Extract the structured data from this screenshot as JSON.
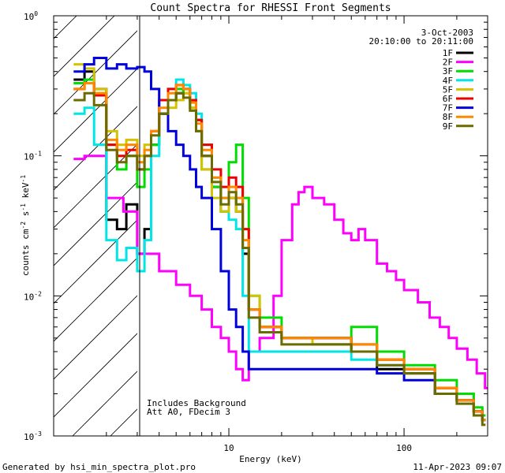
{
  "chart_data": {
    "type": "line",
    "title": "Count Spectra for RHESSI Front Segments",
    "xlabel": "Energy (keV)",
    "ylabel": "counts cm-2 s-1 keV-1",
    "ylabel_parts": {
      "base": "counts cm",
      "e1": "-2",
      "s": " s",
      "e2": "-1",
      "k": " keV",
      "e3": "-1"
    },
    "xscale": "log",
    "yscale": "log",
    "xlim": [
      1,
      300
    ],
    "ylim": [
      0.001,
      1
    ],
    "x_ticks": [
      {
        "value": 10,
        "label": "10"
      },
      {
        "value": 100,
        "label": "100"
      }
    ],
    "y_ticks": [
      {
        "value": 0.001,
        "base": "10",
        "exp": "-3"
      },
      {
        "value": 0.01,
        "base": "10",
        "exp": "-2"
      },
      {
        "value": 0.1,
        "base": "10",
        "exp": "-1"
      },
      {
        "value": 1,
        "base": "10",
        "exp": "0"
      }
    ],
    "shaded_region": {
      "x_range": [
        1,
        3
      ],
      "description": "hatched, below 3 keV"
    },
    "date_label": "3-Oct-2003",
    "time_label": "20:10:00 to 20:11:00",
    "annotation_lines": [
      "Includes Background",
      "Att A0, FDecim 3"
    ],
    "footer_left": "Generated by hsi_min_spectra_plot.pro",
    "footer_right": "11-Apr-2023 09:07",
    "series": [
      {
        "name": "1F",
        "color": "#000000",
        "points": [
          [
            1.3,
            0.35
          ],
          [
            1.5,
            0.4
          ],
          [
            1.7,
            0.3
          ],
          [
            2.0,
            0.035
          ],
          [
            2.3,
            0.03
          ],
          [
            2.6,
            0.045
          ],
          [
            3.0,
            0.02
          ],
          [
            3.3,
            0.03
          ],
          [
            3.6,
            0.12
          ],
          [
            4.0,
            0.2
          ],
          [
            4.5,
            0.25
          ],
          [
            5.0,
            0.28
          ],
          [
            5.5,
            0.3
          ],
          [
            6.0,
            0.25
          ],
          [
            6.5,
            0.18
          ],
          [
            7.0,
            0.1
          ],
          [
            8.0,
            0.06
          ],
          [
            9.0,
            0.04
          ],
          [
            10,
            0.05
          ],
          [
            11,
            0.04
          ],
          [
            12,
            0.02
          ],
          [
            13,
            0.008
          ],
          [
            15,
            0.006
          ],
          [
            20,
            0.005
          ],
          [
            30,
            0.005
          ],
          [
            50,
            0.004
          ],
          [
            70,
            0.003
          ],
          [
            100,
            0.0028
          ],
          [
            150,
            0.002
          ],
          [
            200,
            0.0018
          ],
          [
            250,
            0.0015
          ],
          [
            280,
            0.0013
          ]
        ]
      },
      {
        "name": "2F",
        "color": "#ff00ff",
        "points": [
          [
            1.3,
            0.095
          ],
          [
            1.5,
            0.1
          ],
          [
            2.0,
            0.05
          ],
          [
            2.5,
            0.04
          ],
          [
            3.0,
            0.02
          ],
          [
            4.0,
            0.015
          ],
          [
            5.0,
            0.012
          ],
          [
            6.0,
            0.01
          ],
          [
            7.0,
            0.008
          ],
          [
            8.0,
            0.006
          ],
          [
            9.0,
            0.005
          ],
          [
            10,
            0.004
          ],
          [
            11,
            0.003
          ],
          [
            12,
            0.0025
          ],
          [
            13,
            0.004
          ],
          [
            15,
            0.005
          ],
          [
            18,
            0.01
          ],
          [
            20,
            0.025
          ],
          [
            23,
            0.045
          ],
          [
            25,
            0.055
          ],
          [
            27,
            0.06
          ],
          [
            30,
            0.05
          ],
          [
            35,
            0.045
          ],
          [
            40,
            0.035
          ],
          [
            45,
            0.028
          ],
          [
            50,
            0.025
          ],
          [
            55,
            0.03
          ],
          [
            60,
            0.025
          ],
          [
            70,
            0.017
          ],
          [
            80,
            0.015
          ],
          [
            90,
            0.013
          ],
          [
            100,
            0.011
          ],
          [
            120,
            0.009
          ],
          [
            140,
            0.007
          ],
          [
            160,
            0.006
          ],
          [
            180,
            0.005
          ],
          [
            200,
            0.0042
          ],
          [
            230,
            0.0035
          ],
          [
            260,
            0.0028
          ],
          [
            290,
            0.0022
          ]
        ]
      },
      {
        "name": "3F",
        "color": "#00dd00",
        "points": [
          [
            1.3,
            0.33
          ],
          [
            1.5,
            0.35
          ],
          [
            1.7,
            0.28
          ],
          [
            2.0,
            0.12
          ],
          [
            2.3,
            0.08
          ],
          [
            2.6,
            0.1
          ],
          [
            3.0,
            0.06
          ],
          [
            3.3,
            0.08
          ],
          [
            3.6,
            0.12
          ],
          [
            4.0,
            0.2
          ],
          [
            4.5,
            0.25
          ],
          [
            5.0,
            0.3
          ],
          [
            5.5,
            0.28
          ],
          [
            6.0,
            0.22
          ],
          [
            6.5,
            0.15
          ],
          [
            7.0,
            0.08
          ],
          [
            8.0,
            0.06
          ],
          [
            9.0,
            0.05
          ],
          [
            10,
            0.09
          ],
          [
            11,
            0.12
          ],
          [
            12,
            0.05
          ],
          [
            13,
            0.01
          ],
          [
            15,
            0.007
          ],
          [
            20,
            0.005
          ],
          [
            30,
            0.0045
          ],
          [
            50,
            0.006
          ],
          [
            70,
            0.004
          ],
          [
            100,
            0.0032
          ],
          [
            150,
            0.0025
          ],
          [
            200,
            0.002
          ],
          [
            250,
            0.0016
          ],
          [
            280,
            0.0014
          ]
        ]
      },
      {
        "name": "4F",
        "color": "#00e5e5",
        "points": [
          [
            1.3,
            0.2
          ],
          [
            1.5,
            0.22
          ],
          [
            1.7,
            0.12
          ],
          [
            2.0,
            0.025
          ],
          [
            2.3,
            0.018
          ],
          [
            2.6,
            0.022
          ],
          [
            3.0,
            0.015
          ],
          [
            3.3,
            0.025
          ],
          [
            3.6,
            0.1
          ],
          [
            4.0,
            0.25
          ],
          [
            4.5,
            0.3
          ],
          [
            5.0,
            0.35
          ],
          [
            5.5,
            0.32
          ],
          [
            6.0,
            0.28
          ],
          [
            6.5,
            0.2
          ],
          [
            7.0,
            0.12
          ],
          [
            8.0,
            0.07
          ],
          [
            9.0,
            0.04
          ],
          [
            10,
            0.035
          ],
          [
            11,
            0.03
          ],
          [
            12,
            0.01
          ],
          [
            13,
            0.004
          ],
          [
            15,
            0.004
          ],
          [
            20,
            0.004
          ],
          [
            30,
            0.004
          ],
          [
            50,
            0.0035
          ],
          [
            70,
            0.0032
          ],
          [
            100,
            0.003
          ],
          [
            150,
            0.0022
          ],
          [
            200,
            0.0018
          ],
          [
            250,
            0.0015
          ],
          [
            280,
            0.0013
          ]
        ]
      },
      {
        "name": "5F",
        "color": "#d4c300",
        "points": [
          [
            1.3,
            0.45
          ],
          [
            1.5,
            0.42
          ],
          [
            1.7,
            0.3
          ],
          [
            2.0,
            0.15
          ],
          [
            2.3,
            0.12
          ],
          [
            2.6,
            0.13
          ],
          [
            3.0,
            0.1
          ],
          [
            3.3,
            0.12
          ],
          [
            3.6,
            0.15
          ],
          [
            4.0,
            0.2
          ],
          [
            4.5,
            0.22
          ],
          [
            5.0,
            0.25
          ],
          [
            5.5,
            0.28
          ],
          [
            6.0,
            0.22
          ],
          [
            6.5,
            0.15
          ],
          [
            7.0,
            0.08
          ],
          [
            8.0,
            0.05
          ],
          [
            9.0,
            0.04
          ],
          [
            10,
            0.05
          ],
          [
            11,
            0.04
          ],
          [
            12,
            0.03
          ],
          [
            13,
            0.01
          ],
          [
            15,
            0.006
          ],
          [
            20,
            0.005
          ],
          [
            30,
            0.0045
          ],
          [
            50,
            0.004
          ],
          [
            70,
            0.0035
          ],
          [
            100,
            0.003
          ],
          [
            150,
            0.0022
          ],
          [
            200,
            0.0018
          ],
          [
            250,
            0.0015
          ],
          [
            280,
            0.0013
          ]
        ]
      },
      {
        "name": "6F",
        "color": "#ee0000",
        "points": [
          [
            1.3,
            0.3
          ],
          [
            1.5,
            0.33
          ],
          [
            1.7,
            0.27
          ],
          [
            2.0,
            0.12
          ],
          [
            2.3,
            0.1
          ],
          [
            2.6,
            0.11
          ],
          [
            3.0,
            0.08
          ],
          [
            3.3,
            0.1
          ],
          [
            3.6,
            0.15
          ],
          [
            4.0,
            0.25
          ],
          [
            4.5,
            0.3
          ],
          [
            5.0,
            0.32
          ],
          [
            5.5,
            0.3
          ],
          [
            6.0,
            0.25
          ],
          [
            6.5,
            0.18
          ],
          [
            7.0,
            0.12
          ],
          [
            8.0,
            0.08
          ],
          [
            9.0,
            0.06
          ],
          [
            10,
            0.07
          ],
          [
            11,
            0.06
          ],
          [
            12,
            0.03
          ],
          [
            13,
            0.008
          ],
          [
            15,
            0.006
          ],
          [
            20,
            0.005
          ],
          [
            30,
            0.005
          ],
          [
            50,
            0.0045
          ],
          [
            70,
            0.0035
          ],
          [
            100,
            0.003
          ],
          [
            150,
            0.0022
          ],
          [
            200,
            0.0018
          ],
          [
            250,
            0.0015
          ],
          [
            280,
            0.0013
          ]
        ]
      },
      {
        "name": "7F",
        "color": "#0000dd",
        "points": [
          [
            1.3,
            0.4
          ],
          [
            1.5,
            0.45
          ],
          [
            1.7,
            0.5
          ],
          [
            2.0,
            0.42
          ],
          [
            2.3,
            0.45
          ],
          [
            2.6,
            0.42
          ],
          [
            3.0,
            0.43
          ],
          [
            3.3,
            0.4
          ],
          [
            3.6,
            0.3
          ],
          [
            4.0,
            0.2
          ],
          [
            4.5,
            0.15
          ],
          [
            5.0,
            0.12
          ],
          [
            5.5,
            0.1
          ],
          [
            6.0,
            0.08
          ],
          [
            6.5,
            0.06
          ],
          [
            7.0,
            0.05
          ],
          [
            8.0,
            0.03
          ],
          [
            9.0,
            0.015
          ],
          [
            10,
            0.008
          ],
          [
            11,
            0.006
          ],
          [
            12,
            0.004
          ],
          [
            13,
            0.003
          ],
          [
            15,
            0.003
          ],
          [
            20,
            0.003
          ],
          [
            30,
            0.003
          ],
          [
            50,
            0.003
          ],
          [
            70,
            0.0028
          ],
          [
            100,
            0.0025
          ],
          [
            150,
            0.002
          ],
          [
            200,
            0.0018
          ],
          [
            250,
            0.0015
          ],
          [
            280,
            0.0013
          ]
        ]
      },
      {
        "name": "8F",
        "color": "#ff8800",
        "points": [
          [
            1.3,
            0.3
          ],
          [
            1.5,
            0.33
          ],
          [
            1.7,
            0.28
          ],
          [
            2.0,
            0.13
          ],
          [
            2.3,
            0.11
          ],
          [
            2.6,
            0.12
          ],
          [
            3.0,
            0.09
          ],
          [
            3.3,
            0.11
          ],
          [
            3.6,
            0.15
          ],
          [
            4.0,
            0.22
          ],
          [
            4.5,
            0.28
          ],
          [
            5.0,
            0.32
          ],
          [
            5.5,
            0.3
          ],
          [
            6.0,
            0.24
          ],
          [
            6.5,
            0.17
          ],
          [
            7.0,
            0.11
          ],
          [
            8.0,
            0.07
          ],
          [
            9.0,
            0.05
          ],
          [
            10,
            0.06
          ],
          [
            11,
            0.05
          ],
          [
            12,
            0.025
          ],
          [
            13,
            0.008
          ],
          [
            15,
            0.006
          ],
          [
            20,
            0.005
          ],
          [
            30,
            0.005
          ],
          [
            50,
            0.0045
          ],
          [
            70,
            0.0035
          ],
          [
            100,
            0.003
          ],
          [
            150,
            0.0022
          ],
          [
            200,
            0.0018
          ],
          [
            250,
            0.0015
          ],
          [
            280,
            0.0013
          ]
        ]
      },
      {
        "name": "9F",
        "color": "#6b6b00",
        "points": [
          [
            1.3,
            0.25
          ],
          [
            1.5,
            0.28
          ],
          [
            1.7,
            0.23
          ],
          [
            2.0,
            0.11
          ],
          [
            2.3,
            0.09
          ],
          [
            2.6,
            0.1
          ],
          [
            3.0,
            0.08
          ],
          [
            3.3,
            0.1
          ],
          [
            3.6,
            0.14
          ],
          [
            4.0,
            0.2
          ],
          [
            4.5,
            0.25
          ],
          [
            5.0,
            0.28
          ],
          [
            5.5,
            0.26
          ],
          [
            6.0,
            0.21
          ],
          [
            6.5,
            0.15
          ],
          [
            7.0,
            0.1
          ],
          [
            8.0,
            0.065
          ],
          [
            9.0,
            0.045
          ],
          [
            10,
            0.055
          ],
          [
            11,
            0.045
          ],
          [
            12,
            0.022
          ],
          [
            13,
            0.007
          ],
          [
            15,
            0.0055
          ],
          [
            20,
            0.0045
          ],
          [
            30,
            0.0045
          ],
          [
            50,
            0.004
          ],
          [
            70,
            0.0032
          ],
          [
            100,
            0.0028
          ],
          [
            150,
            0.002
          ],
          [
            200,
            0.0017
          ],
          [
            250,
            0.0014
          ],
          [
            280,
            0.0012
          ]
        ]
      }
    ]
  }
}
